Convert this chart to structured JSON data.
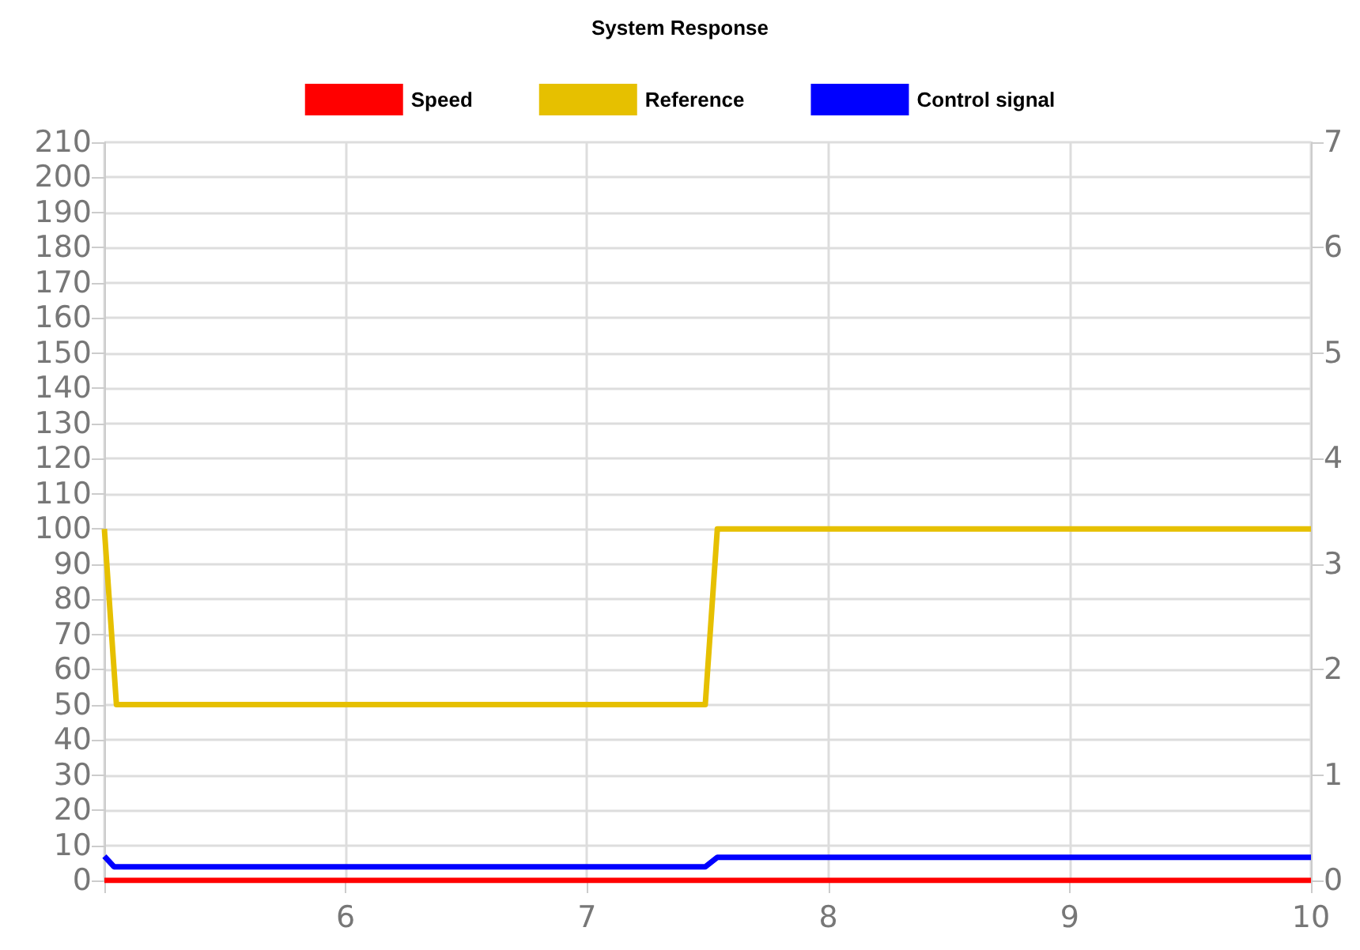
{
  "chart_data": {
    "type": "line",
    "title": "System Response",
    "legend": "top",
    "grid": true,
    "marker": "none",
    "line_style": "solid",
    "xlim": [
      5,
      10
    ],
    "xticks": [
      {
        "value": 5,
        "label": null
      },
      6,
      7,
      8,
      9,
      10
    ],
    "ylim": [
      0,
      210
    ],
    "yticks": [
      0,
      10,
      20,
      30,
      40,
      50,
      60,
      70,
      80,
      90,
      100,
      110,
      120,
      130,
      140,
      150,
      160,
      170,
      180,
      190,
      200,
      210
    ],
    "y2lim": [
      0,
      7
    ],
    "y2ticks": [
      0,
      1,
      2,
      3,
      4,
      5,
      6,
      7
    ],
    "series": [
      {
        "name": "Speed",
        "color": "#ff0000",
        "x": [
          5,
          10
        ],
        "values": [
          0,
          0
        ]
      },
      {
        "name": "Reference",
        "color": "#e6c000",
        "x": [
          5,
          5.05,
          7.49,
          7.54,
          10
        ],
        "values": [
          100,
          50,
          50,
          100,
          100
        ]
      },
      {
        "name": "Control signal",
        "color": "#0000ff",
        "axis": "y2",
        "x": [
          5,
          5.04,
          7.49,
          7.54,
          10
        ],
        "values": [
          0.23,
          0.13,
          0.13,
          0.22,
          0.22
        ]
      }
    ]
  }
}
